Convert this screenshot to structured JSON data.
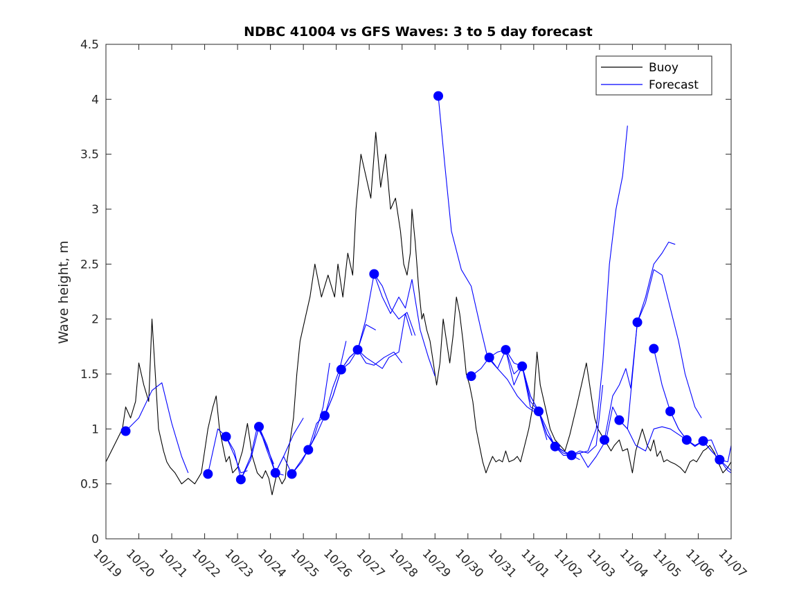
{
  "chart_data": {
    "type": "line",
    "title": "NDBC 41004 vs GFS Waves: 3 to 5 day forecast",
    "xlabel": "",
    "ylabel": "Wave height, m",
    "xlim": [
      0,
      19
    ],
    "ylim": [
      0,
      4.5
    ],
    "x_tick_labels": [
      "10/19",
      "10/20",
      "10/21",
      "10/22",
      "10/23",
      "10/24",
      "10/25",
      "10/26",
      "10/27",
      "10/28",
      "10/29",
      "10/30",
      "10/31",
      "11/01",
      "11/02",
      "11/03",
      "11/04",
      "11/05",
      "11/06",
      "11/07"
    ],
    "y_ticks": [
      0,
      0.5,
      1,
      1.5,
      2,
      2.5,
      3,
      3.5,
      4,
      4.5
    ],
    "y_tick_labels": [
      "0",
      "0.5",
      "1",
      "1.5",
      "2",
      "2.5",
      "3",
      "3.5",
      "4",
      "4.5"
    ],
    "legend": [
      {
        "label": "Buoy",
        "color": "#000000"
      },
      {
        "label": "Forecast",
        "color": "#0000ff"
      }
    ],
    "series": [
      {
        "name": "Buoy",
        "color": "#000000",
        "x": [
          0.0,
          0.25,
          0.5,
          0.6,
          0.75,
          0.9,
          1.0,
          1.15,
          1.3,
          1.4,
          1.5,
          1.6,
          1.75,
          1.85,
          1.95,
          2.1,
          2.3,
          2.5,
          2.7,
          2.9,
          3.0,
          3.1,
          3.25,
          3.35,
          3.45,
          3.55,
          3.65,
          3.75,
          3.85,
          4.0,
          4.15,
          4.3,
          4.45,
          4.6,
          4.75,
          4.85,
          4.95,
          5.05,
          5.2,
          5.35,
          5.45,
          5.5,
          5.6,
          5.7,
          5.8,
          5.9,
          6.05,
          6.2,
          6.35,
          6.55,
          6.75,
          6.95,
          7.05,
          7.2,
          7.35,
          7.5,
          7.6,
          7.75,
          7.9,
          8.05,
          8.2,
          8.35,
          8.5,
          8.65,
          8.8,
          8.95,
          9.05,
          9.15,
          9.25,
          9.3,
          9.4,
          9.5,
          9.6,
          9.65,
          9.75,
          9.85,
          9.95,
          10.05,
          10.15,
          10.25,
          10.35,
          10.45,
          10.55,
          10.65,
          10.75,
          10.85,
          10.95,
          11.05,
          11.15,
          11.25,
          11.35,
          11.45,
          11.55,
          11.65,
          11.75,
          11.85,
          11.95,
          12.05,
          12.15,
          12.25,
          12.4,
          12.5,
          12.6,
          12.7,
          12.85,
          13.0,
          13.1,
          13.2,
          13.35,
          13.5,
          13.65,
          13.8,
          13.95,
          14.1,
          14.3,
          14.45,
          14.6,
          14.75,
          14.85,
          14.95,
          15.05,
          15.15,
          15.25,
          15.35,
          15.45,
          15.6,
          15.7,
          15.85,
          16.0,
          16.1,
          16.2,
          16.3,
          16.45,
          16.55,
          16.65,
          16.75,
          16.85,
          16.95,
          17.05,
          17.15,
          17.3,
          17.45,
          17.6,
          17.75,
          17.85,
          17.95,
          18.05,
          18.15,
          18.25,
          18.35,
          18.5,
          18.6,
          18.75,
          18.9,
          19.0
        ],
        "y": [
          0.7,
          0.85,
          1.0,
          1.2,
          1.1,
          1.25,
          1.6,
          1.4,
          1.25,
          2.0,
          1.5,
          1.0,
          0.8,
          0.7,
          0.65,
          0.6,
          0.5,
          0.55,
          0.5,
          0.6,
          0.8,
          1.0,
          1.2,
          1.3,
          1.0,
          0.85,
          0.7,
          0.75,
          0.6,
          0.65,
          0.8,
          1.05,
          0.75,
          0.6,
          0.55,
          0.62,
          0.55,
          0.4,
          0.6,
          0.5,
          0.55,
          0.7,
          0.9,
          1.1,
          1.5,
          1.8,
          2.0,
          2.2,
          2.5,
          2.2,
          2.4,
          2.2,
          2.5,
          2.2,
          2.6,
          2.4,
          3.0,
          3.5,
          3.3,
          3.1,
          3.7,
          3.2,
          3.5,
          3.0,
          3.1,
          2.8,
          2.5,
          2.4,
          2.6,
          3.0,
          2.7,
          2.3,
          2.0,
          2.05,
          1.9,
          1.8,
          1.6,
          1.4,
          1.6,
          2.0,
          1.8,
          1.6,
          1.85,
          2.2,
          2.05,
          1.8,
          1.5,
          1.4,
          1.25,
          1.0,
          0.85,
          0.7,
          0.6,
          0.68,
          0.75,
          0.7,
          0.72,
          0.7,
          0.8,
          0.7,
          0.72,
          0.75,
          0.7,
          0.82,
          1.0,
          1.25,
          1.7,
          1.4,
          1.2,
          1.0,
          0.9,
          0.85,
          0.8,
          0.95,
          1.2,
          1.4,
          1.6,
          1.3,
          1.1,
          1.0,
          0.95,
          0.9,
          0.85,
          0.8,
          0.85,
          0.9,
          0.8,
          0.82,
          0.6,
          0.8,
          0.9,
          1.0,
          0.85,
          0.8,
          0.9,
          0.75,
          0.8,
          0.7,
          0.72,
          0.7,
          0.68,
          0.65,
          0.6,
          0.7,
          0.72,
          0.7,
          0.75,
          0.8,
          0.82,
          0.85,
          0.78,
          0.7,
          0.6,
          0.65,
          0.7
        ]
      },
      {
        "name": "Forecast 10/19",
        "color": "#0000ff",
        "x": [
          0.6,
          1.0,
          1.4,
          1.7,
          2.0,
          2.3,
          2.5
        ],
        "y": [
          0.98,
          1.1,
          1.35,
          1.42,
          1.05,
          0.75,
          0.6
        ]
      },
      {
        "name": "Forecast 10/22a",
        "color": "#0000ff",
        "x": [
          3.1,
          3.4,
          3.65,
          3.9,
          4.1,
          4.3
        ],
        "y": [
          0.59,
          1.0,
          0.93,
          0.76,
          0.6,
          0.62
        ]
      },
      {
        "name": "Forecast 10/22b",
        "color": "#0000ff",
        "x": [
          3.65,
          3.9,
          4.1,
          4.4,
          4.6,
          4.8,
          5.1
        ],
        "y": [
          0.93,
          0.8,
          0.54,
          0.75,
          1.02,
          0.9,
          0.68
        ]
      },
      {
        "name": "Forecast 10/23",
        "color": "#0000ff",
        "x": [
          4.1,
          4.4,
          4.65,
          4.9,
          5.15,
          5.4
        ],
        "y": [
          0.54,
          0.72,
          1.02,
          0.8,
          0.6,
          0.58
        ]
      },
      {
        "name": "Forecast 10/24a",
        "color": "#0000ff",
        "x": [
          4.65,
          4.9,
          5.15,
          5.4,
          5.7,
          6.0
        ],
        "y": [
          1.02,
          0.85,
          0.6,
          0.75,
          0.95,
          1.1
        ]
      },
      {
        "name": "Forecast 10/24b",
        "color": "#0000ff",
        "x": [
          5.15,
          5.4,
          5.65,
          5.95,
          6.3,
          6.6,
          6.8
        ],
        "y": [
          0.6,
          0.75,
          0.59,
          0.7,
          0.9,
          1.2,
          1.6
        ]
      },
      {
        "name": "Forecast 10/25",
        "color": "#0000ff",
        "x": [
          5.65,
          5.95,
          6.15,
          6.4,
          6.65,
          6.9,
          7.1,
          7.3
        ],
        "y": [
          0.59,
          0.72,
          0.81,
          1.05,
          1.12,
          1.38,
          1.54,
          1.8
        ]
      },
      {
        "name": "Forecast 10/26",
        "color": "#0000ff",
        "x": [
          6.15,
          6.4,
          6.65,
          6.9,
          7.15,
          7.4,
          7.65,
          7.9,
          8.2
        ],
        "y": [
          0.81,
          0.95,
          1.12,
          1.3,
          1.54,
          1.65,
          1.72,
          1.95,
          1.9
        ]
      },
      {
        "name": "Forecast 10/26b",
        "color": "#0000ff",
        "x": [
          6.65,
          6.9,
          7.15,
          7.4,
          7.65,
          7.9,
          8.15,
          8.45,
          8.75,
          9.0
        ],
        "y": [
          1.12,
          1.3,
          1.54,
          1.6,
          1.72,
          1.6,
          1.58,
          1.65,
          1.7,
          1.6
        ]
      },
      {
        "name": "Forecast 10/27",
        "color": "#0000ff",
        "x": [
          7.15,
          7.4,
          7.65,
          7.9,
          8.15,
          8.4,
          8.6,
          8.9,
          9.1,
          9.3
        ],
        "y": [
          1.54,
          1.65,
          1.72,
          1.65,
          1.6,
          1.55,
          1.65,
          1.7,
          2.05,
          1.85
        ]
      },
      {
        "name": "Forecast 10/27b",
        "color": "#0000ff",
        "x": [
          7.65,
          7.9,
          8.15,
          8.4,
          8.65,
          8.9,
          9.1,
          9.3,
          9.55,
          9.8,
          10.0
        ],
        "y": [
          1.72,
          2.0,
          2.41,
          2.2,
          2.05,
          2.2,
          2.1,
          2.36,
          1.9,
          1.65,
          1.48
        ]
      },
      {
        "name": "Forecast 10/28",
        "color": "#0000ff",
        "x": [
          8.15,
          8.4,
          8.65,
          8.9,
          9.15,
          9.4
        ],
        "y": [
          2.41,
          2.3,
          2.1,
          2.0,
          2.06,
          1.85
        ]
      },
      {
        "name": "Forecast 10/29",
        "color": "#0000ff",
        "x": [
          10.1,
          10.3,
          10.5,
          10.8,
          11.1,
          11.4,
          11.6,
          11.9,
          12.2,
          12.5,
          12.8,
          13.0
        ],
        "y": [
          4.03,
          3.4,
          2.8,
          2.45,
          2.3,
          1.9,
          1.65,
          1.55,
          1.45,
          1.3,
          1.2,
          1.16
        ]
      },
      {
        "name": "Forecast 10/30",
        "color": "#0000ff",
        "x": [
          11.1,
          11.4,
          11.65,
          11.9,
          12.15,
          12.4,
          12.65,
          12.9,
          13.15,
          13.4
        ],
        "y": [
          1.48,
          1.55,
          1.65,
          1.7,
          1.72,
          1.5,
          1.57,
          1.2,
          1.16,
          0.9
        ]
      },
      {
        "name": "Forecast 10/31",
        "color": "#0000ff",
        "x": [
          11.65,
          11.9,
          12.15,
          12.4,
          12.65,
          12.9,
          13.15,
          13.4,
          13.7,
          14.0,
          14.3
        ],
        "y": [
          1.65,
          1.55,
          1.72,
          1.4,
          1.57,
          1.25,
          1.16,
          0.95,
          0.84,
          0.78,
          0.76
        ]
      },
      {
        "name": "Forecast 11/01",
        "color": "#0000ff",
        "x": [
          12.15,
          12.4,
          12.65,
          12.9,
          13.15,
          13.4,
          13.65,
          13.9,
          14.15,
          14.4
        ],
        "y": [
          1.72,
          1.6,
          1.57,
          1.3,
          1.16,
          1.0,
          0.84,
          0.8,
          0.76,
          0.72
        ]
      },
      {
        "name": "Forecast 11/01b",
        "color": "#0000ff",
        "x": [
          12.65,
          12.9,
          13.15,
          13.4,
          13.65,
          13.9,
          14.15,
          14.4,
          14.65,
          14.9,
          15.1
        ],
        "y": [
          1.57,
          1.3,
          1.16,
          0.95,
          0.84,
          0.78,
          0.76,
          0.8,
          0.78,
          0.85,
          1.4
        ]
      },
      {
        "name": "Forecast 11/02",
        "color": "#0000ff",
        "x": [
          13.15,
          13.4,
          13.65,
          13.9,
          14.15,
          14.4,
          14.65,
          14.9,
          15.2,
          15.4,
          15.6
        ],
        "y": [
          1.16,
          0.95,
          0.84,
          0.76,
          0.76,
          0.78,
          0.65,
          0.75,
          0.9,
          1.2,
          1.08
        ]
      },
      {
        "name": "Forecast 11/02b",
        "color": "#0000ff",
        "x": [
          13.65,
          13.9,
          14.15,
          14.4,
          14.65,
          14.9,
          15.1,
          15.3,
          15.5,
          15.7,
          15.85
        ],
        "y": [
          0.84,
          0.8,
          0.76,
          0.78,
          0.8,
          1.0,
          1.6,
          2.5,
          3.0,
          3.3,
          3.76
        ]
      },
      {
        "name": "Forecast 11/03",
        "color": "#0000ff",
        "x": [
          15.15,
          15.4,
          15.6,
          15.8,
          15.95,
          16.15,
          16.4,
          16.65,
          16.9,
          17.15,
          17.4,
          17.6,
          17.9,
          18.1
        ],
        "y": [
          0.9,
          1.3,
          1.4,
          1.55,
          1.37,
          1.97,
          2.15,
          2.45,
          2.4,
          2.1,
          1.8,
          1.5,
          1.2,
          1.1
        ]
      },
      {
        "name": "Forecast 11/04",
        "color": "#0000ff",
        "x": [
          15.6,
          15.85,
          16.15,
          16.4,
          16.65,
          16.9,
          17.1,
          17.3
        ],
        "y": [
          1.08,
          1.0,
          1.97,
          2.2,
          2.5,
          2.6,
          2.7,
          2.68
        ]
      },
      {
        "name": "Forecast 11/04b",
        "color": "#0000ff",
        "x": [
          15.6,
          15.85,
          16.1,
          16.4,
          16.65,
          16.9,
          17.15,
          17.4,
          17.65,
          17.9,
          18.15,
          18.4,
          18.65,
          18.9,
          19.0
        ],
        "y": [
          1.08,
          1.0,
          0.85,
          0.8,
          1.0,
          1.02,
          1.0,
          0.95,
          0.9,
          0.85,
          0.89,
          0.8,
          0.72,
          0.65,
          0.62
        ]
      },
      {
        "name": "Forecast 11/05",
        "color": "#0000ff",
        "x": [
          16.65,
          16.9,
          17.15,
          17.4,
          17.65,
          17.9,
          18.15,
          18.4,
          18.65,
          18.9,
          19.0
        ],
        "y": [
          1.73,
          1.4,
          1.16,
          1.0,
          0.9,
          0.84,
          0.89,
          0.9,
          0.72,
          0.7,
          0.85
        ]
      },
      {
        "name": "Forecast 11/06",
        "color": "#0000ff",
        "x": [
          17.15,
          17.4,
          17.65,
          17.9,
          18.15,
          18.4,
          18.65,
          18.9,
          19.0
        ],
        "y": [
          1.16,
          1.0,
          0.9,
          0.85,
          0.89,
          0.8,
          0.72,
          0.62,
          0.6
        ]
      }
    ],
    "markers": {
      "name": "Forecast analysis points",
      "color": "#0000ff",
      "x": [
        0.6,
        3.1,
        3.65,
        4.1,
        4.65,
        5.15,
        5.65,
        6.15,
        6.65,
        7.15,
        7.65,
        8.15,
        10.1,
        11.1,
        11.65,
        12.15,
        12.65,
        13.15,
        13.65,
        14.15,
        15.15,
        15.6,
        16.15,
        16.65,
        17.15,
        17.65,
        18.15,
        18.65
      ],
      "y": [
        0.98,
        0.59,
        0.93,
        0.54,
        1.02,
        0.6,
        0.59,
        0.81,
        1.12,
        1.54,
        1.72,
        2.41,
        4.03,
        1.48,
        1.65,
        1.72,
        1.57,
        1.16,
        0.84,
        0.76,
        0.9,
        1.08,
        1.97,
        1.73,
        1.16,
        0.9,
        0.89,
        0.72
      ]
    }
  }
}
